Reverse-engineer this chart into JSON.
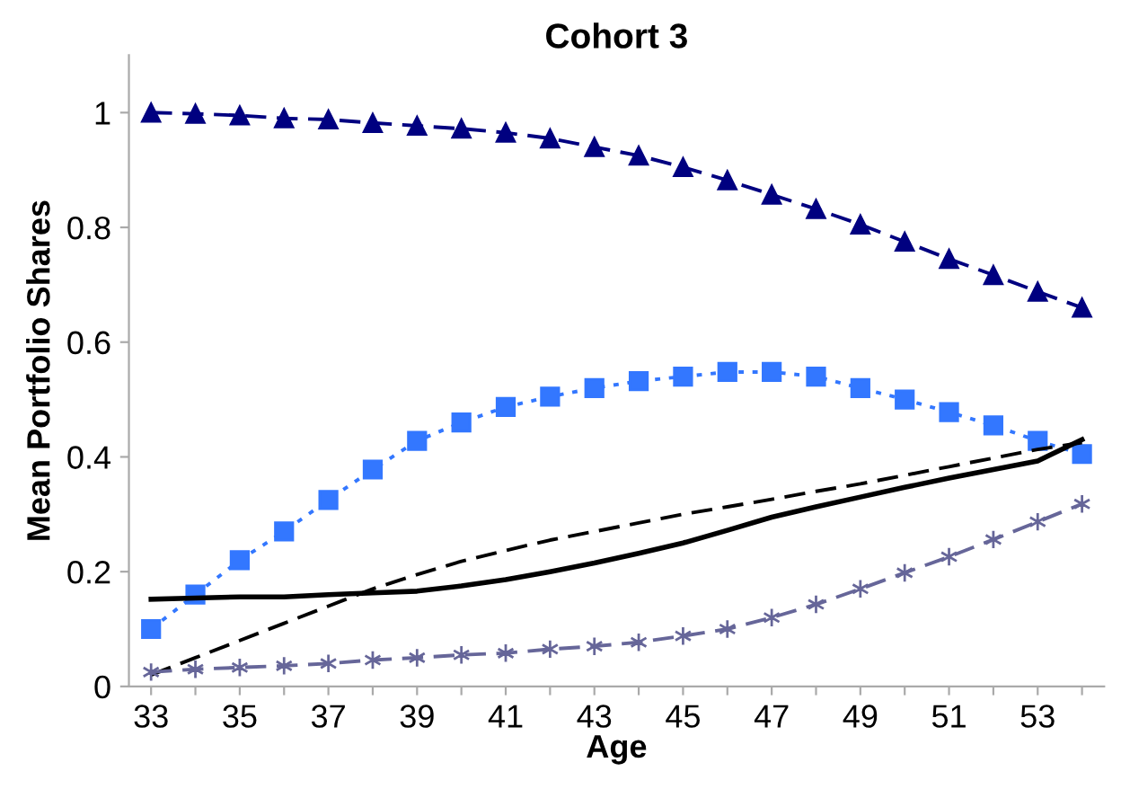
{
  "chart_data": {
    "type": "line",
    "title": "Cohort 3",
    "xlabel": "Age",
    "ylabel": "Mean Portfolio Shares",
    "categories": [
      "33",
      null,
      "35",
      null,
      "37",
      null,
      "39",
      null,
      "41",
      null,
      "43",
      null,
      "45",
      null,
      "47",
      null,
      "49",
      null,
      "51",
      null,
      "53",
      null
    ],
    "ylim": [
      0,
      1.1
    ],
    "yticks": [
      0,
      0.2,
      0.4,
      0.6,
      0.8,
      1
    ],
    "grid": false,
    "series": [
      {
        "color": "#000080",
        "marker": "triangle",
        "line_style": "dashed",
        "values": [
          1.0,
          0.998,
          0.995,
          0.99,
          0.988,
          0.982,
          0.977,
          0.972,
          0.965,
          0.955,
          0.94,
          0.925,
          0.905,
          0.882,
          0.857,
          0.832,
          0.805,
          0.775,
          0.745,
          0.717,
          0.688,
          0.66
        ]
      },
      {
        "color": "#3377ff",
        "marker": "square",
        "line_style": "dotted",
        "values": [
          0.1,
          0.16,
          0.22,
          0.27,
          0.325,
          0.378,
          0.428,
          0.46,
          0.487,
          0.505,
          0.52,
          0.532,
          0.54,
          0.548,
          0.548,
          0.54,
          0.52,
          0.5,
          0.478,
          0.455,
          0.428,
          0.405
        ]
      },
      {
        "color": "#000000",
        "marker": "none",
        "line_style": "solid",
        "values": [
          0.152,
          0.154,
          0.156,
          0.156,
          0.16,
          0.163,
          0.166,
          0.175,
          0.186,
          0.2,
          0.215,
          0.232,
          0.25,
          0.272,
          0.295,
          0.313,
          0.33,
          0.347,
          0.363,
          0.378,
          0.393,
          0.43
        ]
      },
      {
        "color": "#000000",
        "marker": "none",
        "line_style": "dashed",
        "values": [
          0.02,
          0.05,
          0.08,
          0.11,
          0.14,
          0.17,
          0.195,
          0.218,
          0.237,
          0.255,
          0.27,
          0.285,
          0.3,
          0.313,
          0.326,
          0.34,
          0.353,
          0.368,
          0.383,
          0.398,
          0.413,
          0.425
        ]
      },
      {
        "color": "#666699",
        "marker": "cross",
        "line_style": "dashed",
        "values": [
          0.025,
          0.03,
          0.033,
          0.036,
          0.04,
          0.046,
          0.05,
          0.055,
          0.058,
          0.065,
          0.07,
          0.077,
          0.088,
          0.1,
          0.12,
          0.143,
          0.17,
          0.198,
          0.226,
          0.256,
          0.287,
          0.318
        ]
      }
    ]
  }
}
